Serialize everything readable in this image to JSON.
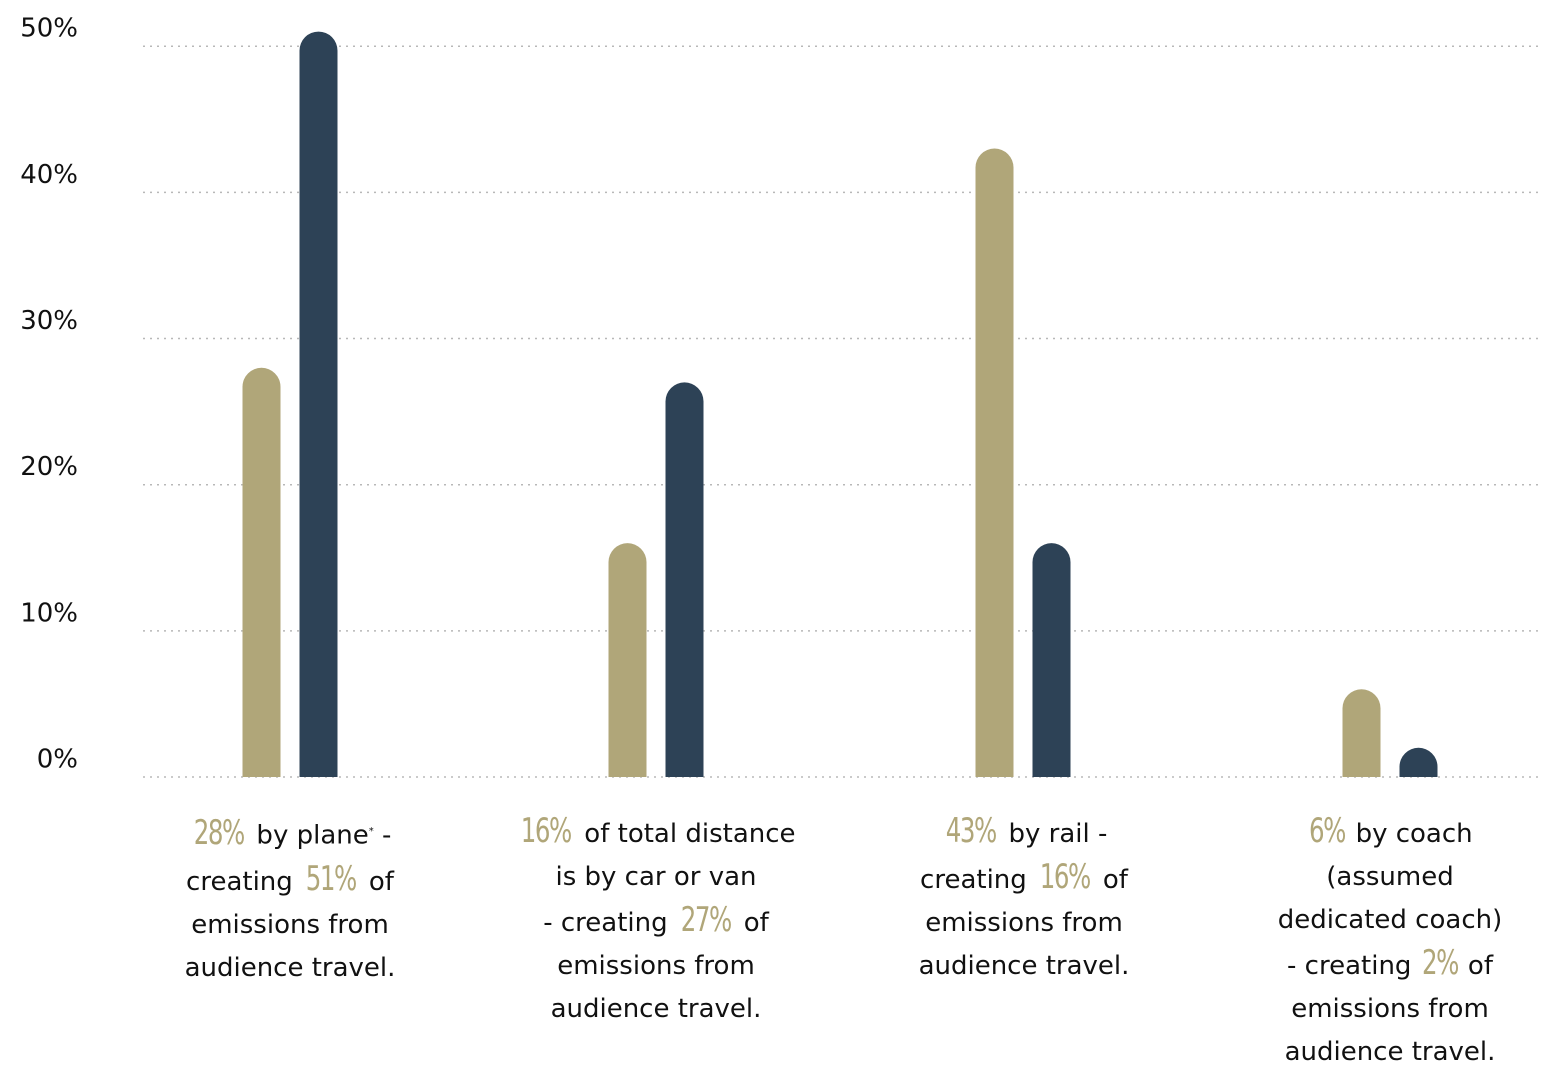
{
  "colors": {
    "distance": "#b0a679",
    "emissions": "#2d4256",
    "highlight": "#b0a679",
    "grid": "#b8b8b8"
  },
  "chart_data": {
    "type": "bar",
    "categories": [
      "plane",
      "car or van",
      "rail",
      "coach"
    ],
    "series": [
      {
        "values": [
          28,
          16,
          43,
          6
        ]
      },
      {
        "values": [
          51,
          27,
          16,
          2
        ]
      }
    ],
    "ylim": [
      0,
      52
    ],
    "yticks": [
      "0%",
      "10%",
      "20%",
      "30%",
      "40%",
      "50%"
    ],
    "grid": true,
    "title": "",
    "xlabel": "",
    "ylabel": ""
  },
  "captions": [
    {
      "v1": "28%",
      "t1": " by plane",
      "sup": "*",
      "t2": " -",
      "t3": "creating ",
      "v2": "51%",
      "t4": " of",
      "t5": "emissions from",
      "t6": "audience travel."
    },
    {
      "v1": "16%",
      "t1": " of total distance",
      "t2": "is by car or van",
      "t3": "- creating ",
      "v2": "27%",
      "t4": " of",
      "t5": "emissions from",
      "t6": "audience travel."
    },
    {
      "v1": "43%",
      "t1": " by rail -",
      "t3": "creating ",
      "v2": "16%",
      "t4": " of",
      "t5": "emissions from",
      "t6": "audience travel."
    },
    {
      "v1": "6%",
      "t1": " by coach",
      "t2": "(assumed",
      "t2b": "dedicated coach)",
      "t3": "- creating ",
      "v2": "2%",
      "t4": " of",
      "t5": "emissions from",
      "t6": "audience travel."
    }
  ]
}
